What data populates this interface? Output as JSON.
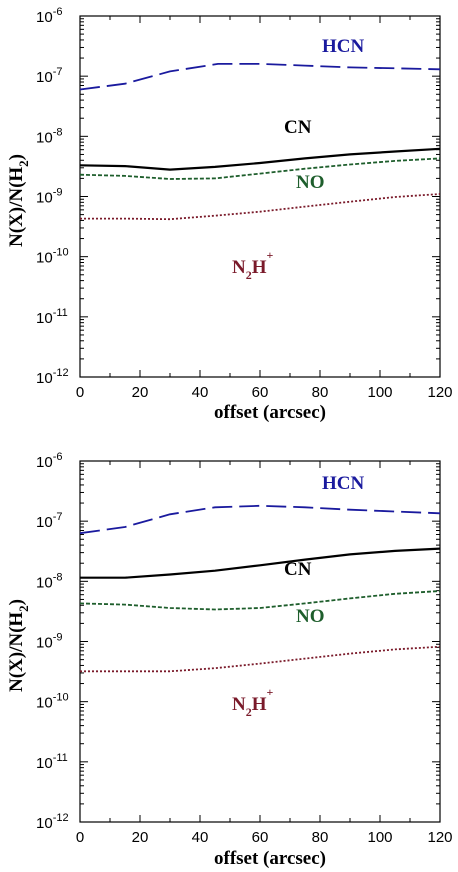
{
  "chart_data": [
    {
      "type": "line",
      "ylabel": {
        "parts": [
          "N(X)/N(H",
          "2",
          ")"
        ]
      },
      "xlabel": "offset (arcsec)",
      "xlim": [
        0,
        120
      ],
      "ylim": [
        1e-12,
        1e-06
      ],
      "y_scale": "log",
      "x_ticks": [
        "0",
        "20",
        "40",
        "60",
        "80",
        "100",
        "120"
      ],
      "y_tick_exponents": [
        "-12",
        "-11",
        "-10",
        "-9",
        "-8",
        "-7",
        "-6"
      ],
      "grid": false,
      "series": [
        {
          "name": "HCN",
          "label_parts": [
            "HCN"
          ],
          "color": "#1a1a9e",
          "dash": "dashed",
          "x": [
            0,
            15,
            30,
            46,
            60,
            75,
            90,
            105,
            120
          ],
          "y": [
            6e-08,
            7.5e-08,
            1.2e-07,
            1.6e-07,
            1.6e-07,
            1.5e-07,
            1.4e-07,
            1.35e-07,
            1.3e-07
          ]
        },
        {
          "name": "CN",
          "label_parts": [
            "CN"
          ],
          "color": "#000000",
          "dash": "solid",
          "x": [
            0,
            15,
            30,
            45,
            60,
            75,
            90,
            105,
            120
          ],
          "y": [
            3.3e-09,
            3.2e-09,
            2.8e-09,
            3.1e-09,
            3.6e-09,
            4.3e-09,
            5e-09,
            5.6e-09,
            6.2e-09
          ]
        },
        {
          "name": "NO",
          "label_parts": [
            "NO"
          ],
          "color": "#1e5e2c",
          "dash": "dotted-dense",
          "x": [
            0,
            15,
            30,
            45,
            60,
            75,
            90,
            105,
            120
          ],
          "y": [
            2.3e-09,
            2.2e-09,
            1.95e-09,
            2e-09,
            2.4e-09,
            2.9e-09,
            3.4e-09,
            3.9e-09,
            4.3e-09
          ]
        },
        {
          "name": "N2H+",
          "label_parts": [
            "N",
            "2",
            "H",
            "+"
          ],
          "color": "#7a1a2a",
          "dash": "dotted",
          "x": [
            0,
            15,
            30,
            45,
            60,
            75,
            90,
            105,
            120
          ],
          "y": [
            4.3e-10,
            4.3e-10,
            4.2e-10,
            4.8e-10,
            5.6e-10,
            6.8e-10,
            8.2e-10,
            9.8e-10,
            1.1e-09
          ]
        }
      ]
    },
    {
      "type": "line",
      "ylabel": {
        "parts": [
          "N(X)/N(H",
          "2",
          ")"
        ]
      },
      "xlabel": "offset (arcsec)",
      "xlim": [
        0,
        120
      ],
      "ylim": [
        1e-12,
        1e-06
      ],
      "y_scale": "log",
      "x_ticks": [
        "0",
        "20",
        "40",
        "60",
        "80",
        "100",
        "120"
      ],
      "y_tick_exponents": [
        "-12",
        "-11",
        "-10",
        "-9",
        "-8",
        "-7",
        "-6"
      ],
      "grid": false,
      "series": [
        {
          "name": "HCN",
          "label_parts": [
            "HCN"
          ],
          "color": "#1a1a9e",
          "dash": "dashed",
          "x": [
            0,
            15,
            30,
            45,
            60,
            75,
            90,
            105,
            120
          ],
          "y": [
            6.3e-08,
            8e-08,
            1.3e-07,
            1.7e-07,
            1.8e-07,
            1.7e-07,
            1.55e-07,
            1.45e-07,
            1.35e-07
          ]
        },
        {
          "name": "CN",
          "label_parts": [
            "CN"
          ],
          "color": "#000000",
          "dash": "solid",
          "x": [
            0,
            15,
            30,
            45,
            60,
            75,
            90,
            105,
            120
          ],
          "y": [
            1.15e-08,
            1.15e-08,
            1.3e-08,
            1.5e-08,
            1.85e-08,
            2.3e-08,
            2.8e-08,
            3.2e-08,
            3.5e-08
          ]
        },
        {
          "name": "NO",
          "label_parts": [
            "NO"
          ],
          "color": "#1e5e2c",
          "dash": "dotted-dense",
          "x": [
            0,
            15,
            30,
            45,
            60,
            75,
            90,
            105,
            120
          ],
          "y": [
            4.3e-09,
            4.1e-09,
            3.6e-09,
            3.4e-09,
            3.6e-09,
            4.3e-09,
            5.2e-09,
            6.2e-09,
            6.9e-09
          ]
        },
        {
          "name": "N2H+",
          "label_parts": [
            "N",
            "2",
            "H",
            "+"
          ],
          "color": "#7a1a2a",
          "dash": "dotted",
          "x": [
            0,
            15,
            30,
            45,
            60,
            75,
            90,
            105,
            120
          ],
          "y": [
            3.2e-10,
            3.2e-10,
            3.2e-10,
            3.6e-10,
            4.3e-10,
            5.2e-10,
            6.3e-10,
            7.4e-10,
            8.2e-10
          ]
        }
      ]
    }
  ]
}
